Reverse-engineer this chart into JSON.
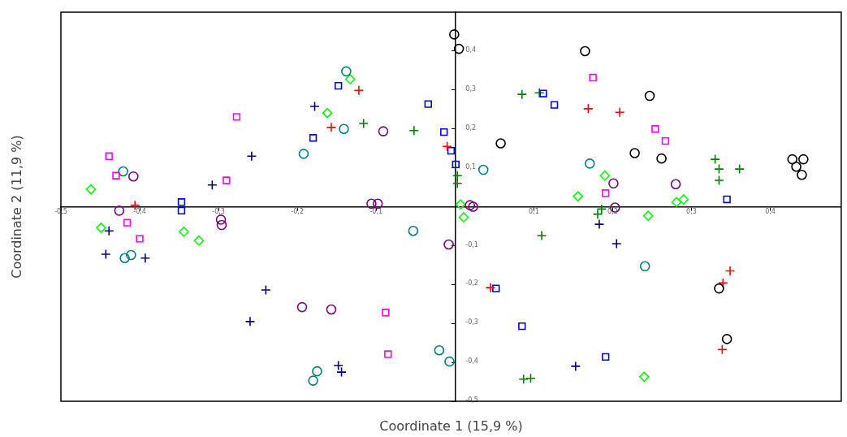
{
  "chart_data": {
    "type": "scatter",
    "xlabel": "Coordinate 1 (15,9 %)",
    "ylabel": "Coordinate 2 (11,9 %)",
    "xlim": [
      -0.5,
      0.49
    ],
    "ylim": [
      -0.5,
      0.5
    ],
    "xticks": [
      {
        "value": -0.5,
        "label": "-0,5"
      },
      {
        "value": -0.4,
        "label": "-0,4"
      },
      {
        "value": -0.3,
        "label": "-0,3"
      },
      {
        "value": -0.2,
        "label": "-0,2"
      },
      {
        "value": -0.1,
        "label": "-0,1"
      },
      {
        "value": 0.1,
        "label": "0,1"
      },
      {
        "value": 0.2,
        "label": "0,2"
      },
      {
        "value": 0.3,
        "label": "0,3"
      },
      {
        "value": 0.4,
        "label": "0,4"
      }
    ],
    "yticks": [
      {
        "value": -0.5,
        "label": "-0,5"
      },
      {
        "value": -0.4,
        "label": "-0,4"
      },
      {
        "value": -0.3,
        "label": "-0,3"
      },
      {
        "value": -0.2,
        "label": "-0,2"
      },
      {
        "value": -0.1,
        "label": "-0,1"
      },
      {
        "value": 0.1,
        "label": "0,1"
      },
      {
        "value": 0.2,
        "label": "0,2"
      },
      {
        "value": 0.3,
        "label": "0,3"
      },
      {
        "value": 0.4,
        "label": "0,4"
      }
    ],
    "grid": false,
    "legend": false,
    "series": [
      {
        "color": "#000000",
        "marker": "circle",
        "x": [
          -0.001,
          0.005,
          0.165,
          0.247,
          0.058,
          0.228,
          0.262,
          0.428,
          0.442,
          0.433,
          0.44,
          0.335,
          0.345
        ],
        "values": [
          0.443,
          0.406,
          0.4,
          0.285,
          0.163,
          0.138,
          0.124,
          0.122,
          0.122,
          0.103,
          0.082,
          -0.21,
          -0.34
        ]
      },
      {
        "color": "#ff00ff",
        "marker": "square",
        "x": [
          -0.439,
          -0.43,
          -0.277,
          -0.29,
          -0.416,
          -0.4,
          -0.088,
          -0.085,
          0.175,
          0.254,
          0.267,
          0.191
        ],
        "values": [
          0.13,
          0.08,
          0.231,
          0.068,
          -0.041,
          -0.082,
          -0.272,
          -0.379,
          0.332,
          0.2,
          0.169,
          0.035
        ]
      },
      {
        "color": "#ff0000",
        "marker": "cross",
        "x": [
          -0.406,
          -0.122,
          -0.157,
          -0.01,
          0.169,
          0.209,
          0.045,
          0.349,
          0.34,
          0.339
        ],
        "values": [
          0.004,
          0.299,
          0.204,
          0.155,
          0.252,
          0.243,
          -0.208,
          -0.165,
          -0.196,
          -0.367
        ]
      },
      {
        "color": "#0000ff",
        "marker": "square",
        "x": [
          -0.347,
          -0.347,
          -0.148,
          -0.18,
          -0.034,
          -0.014,
          -0.005,
          0.001,
          0.112,
          0.126,
          0.345,
          0.052,
          0.085,
          0.191
        ],
        "values": [
          0.012,
          -0.01,
          0.311,
          0.177,
          0.264,
          0.192,
          0.144,
          0.109,
          0.291,
          0.262,
          0.019,
          -0.21,
          -0.307,
          -0.386
        ]
      },
      {
        "color": "#000080",
        "marker": "cross",
        "x": [
          -0.308,
          -0.258,
          -0.178,
          -0.439,
          -0.443,
          -0.393,
          -0.24,
          -0.26,
          -0.148,
          -0.144,
          0.183,
          0.205,
          0.153
        ],
        "values": [
          0.056,
          0.13,
          0.258,
          -0.062,
          -0.122,
          -0.132,
          -0.214,
          -0.295,
          -0.408,
          -0.425,
          -0.045,
          -0.095,
          -0.41
        ]
      },
      {
        "color": "#008080",
        "marker": "circle",
        "x": [
          -0.421,
          -0.192,
          -0.138,
          -0.141,
          0.036,
          0.171,
          -0.419,
          -0.411,
          -0.053,
          0.241,
          -0.02,
          -0.007,
          -0.175,
          -0.18
        ],
        "values": [
          0.091,
          0.136,
          0.348,
          0.2,
          0.095,
          0.111,
          -0.132,
          -0.124,
          -0.062,
          -0.153,
          -0.369,
          -0.398,
          -0.423,
          -0.447
        ]
      },
      {
        "color": "#800080",
        "marker": "circle",
        "x": [
          -0.408,
          -0.426,
          -0.297,
          -0.296,
          -0.091,
          -0.106,
          -0.098,
          0.019,
          0.023,
          -0.008,
          -0.194,
          -0.157,
          0.201,
          0.203,
          0.28
        ],
        "values": [
          0.078,
          -0.01,
          -0.033,
          -0.047,
          0.194,
          0.008,
          0.008,
          0.004,
          0.0,
          -0.097,
          -0.258,
          -0.264,
          0.06,
          -0.002,
          0.058
        ]
      },
      {
        "color": "#00ff00",
        "marker": "diamond",
        "x": [
          -0.462,
          -0.449,
          -0.344,
          -0.325,
          -0.162,
          -0.133,
          0.007,
          0.011,
          0.156,
          0.19,
          0.245,
          0.281,
          0.29,
          0.24
        ],
        "values": [
          0.045,
          -0.054,
          -0.064,
          -0.087,
          0.241,
          0.328,
          0.006,
          -0.027,
          0.027,
          0.08,
          -0.023,
          0.012,
          0.019,
          -0.437
        ]
      },
      {
        "color": "#008000",
        "marker": "cross",
        "x": [
          -0.116,
          -0.052,
          0.003,
          0.003,
          0.085,
          0.107,
          0.33,
          0.335,
          0.335,
          0.361,
          0.181,
          0.186,
          0.11,
          0.087,
          0.096
        ],
        "values": [
          0.214,
          0.196,
          0.08,
          0.06,
          0.289,
          0.293,
          0.122,
          0.097,
          0.068,
          0.097,
          -0.019,
          -0.006,
          -0.074,
          -0.443,
          -0.441
        ]
      }
    ]
  }
}
